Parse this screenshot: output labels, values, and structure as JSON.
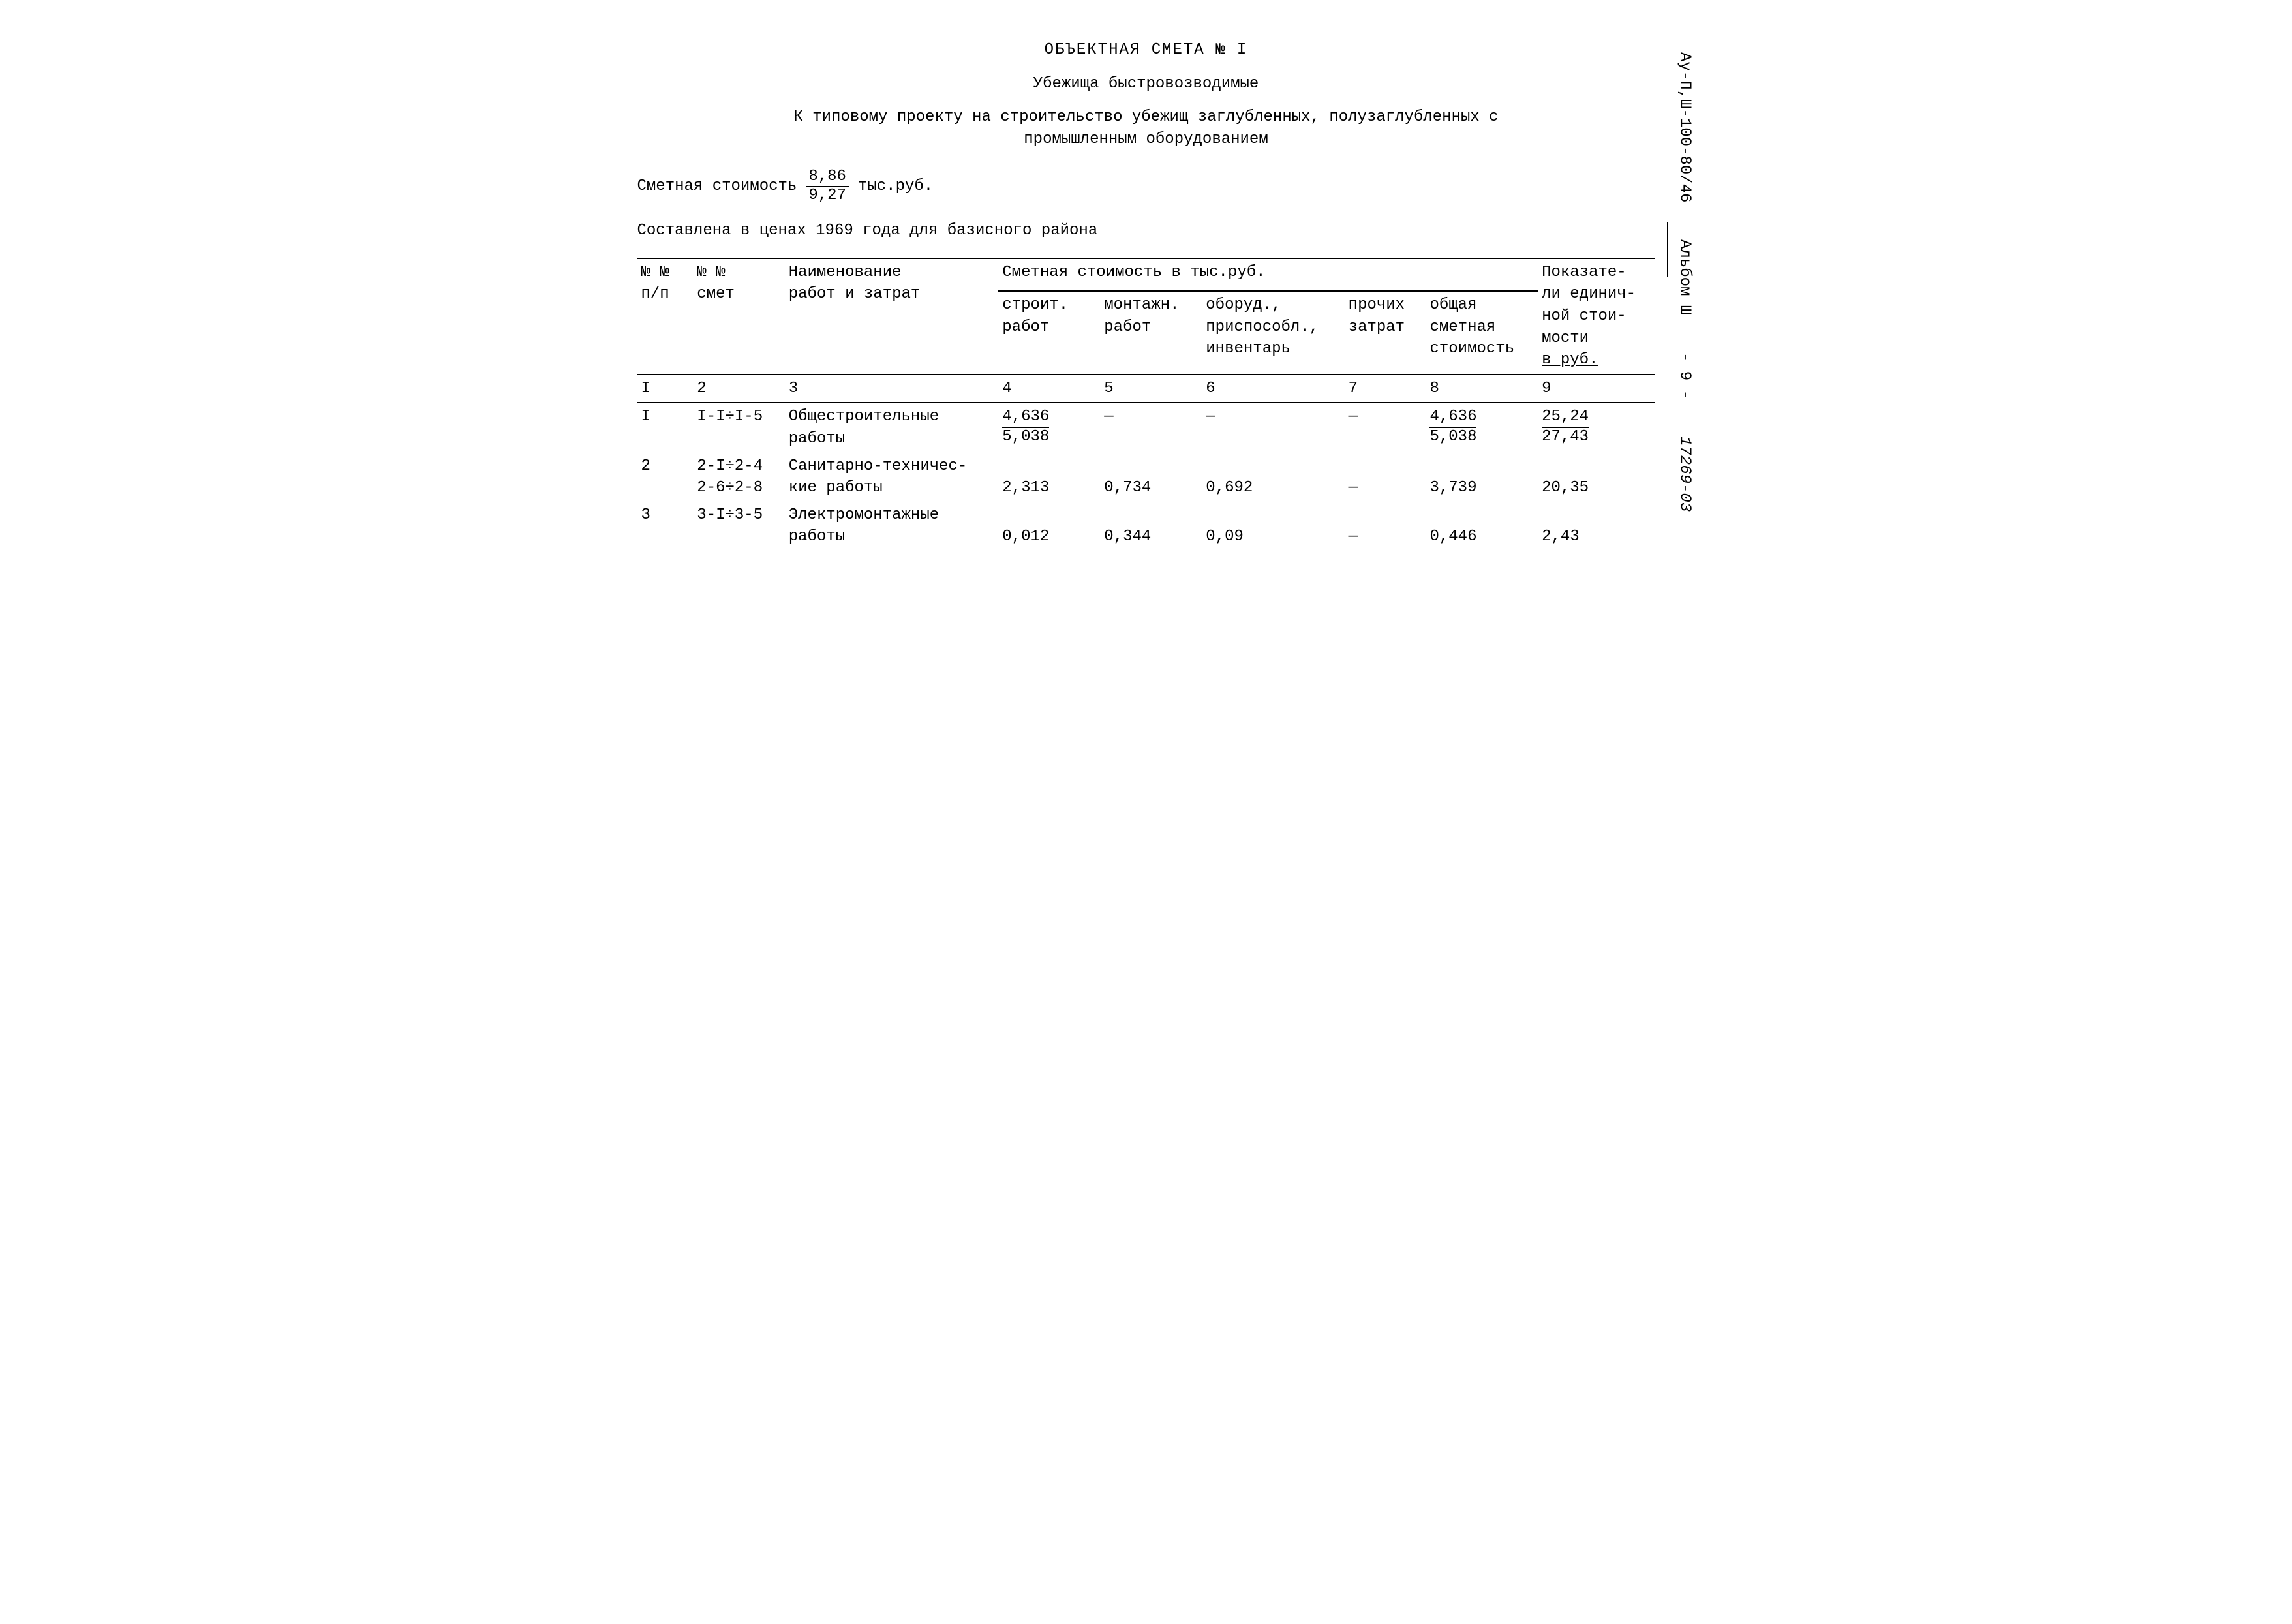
{
  "header": {
    "title1": "ОБЪЕКТНАЯ СМЕТА № I",
    "title2": "Убежища быстровозводимые",
    "title3_line1": "К типовому проекту на строительство убежищ заглубленных, полузаглубленных с",
    "title3_line2": "промышленным оборудованием",
    "cost_label": "Сметная стоимость",
    "cost_top": "8,86",
    "cost_bot": "9,27",
    "cost_unit": "тыс.руб.",
    "prices_line": "Составлена в ценах 1969 года для базисного района"
  },
  "table": {
    "hdr_col1_l1": "№ №",
    "hdr_col1_l2": "п/п",
    "hdr_col2_l1": "№ №",
    "hdr_col2_l2": "смет",
    "hdr_col3_l1": "Наименование",
    "hdr_col3_l2": "работ и затрат",
    "hdr_super": "Сметная стоимость в тыс.руб.",
    "hdr_c4_l1": "строит.",
    "hdr_c4_l2": "работ",
    "hdr_c5_l1": "монтажн.",
    "hdr_c5_l2": "работ",
    "hdr_c6_l1": "оборуд.,",
    "hdr_c6_l2": "приспособл.,",
    "hdr_c6_l3": "инвентарь",
    "hdr_c7_l1": "прочих",
    "hdr_c7_l2": "затрат",
    "hdr_c8_l1": "общая",
    "hdr_c8_l2": "сметная",
    "hdr_c8_l3": "стоимость",
    "hdr_c9_l1": "Показате-",
    "hdr_c9_l2": "ли единич-",
    "hdr_c9_l3": "ной стои-",
    "hdr_c9_l4": "мости",
    "hdr_c9_l5": "в руб.",
    "colnums": [
      "I",
      "2",
      "3",
      "4",
      "5",
      "6",
      "7",
      "8",
      "9"
    ],
    "rows": [
      {
        "n": "I",
        "smet_l1": "I-I÷I-5",
        "smet_l2": "",
        "name_l1": "Общестроительные",
        "name_l2": "работы",
        "c4_top": "4,636",
        "c4_bot": "5,038",
        "c5": "—",
        "c6": "—",
        "c7": "—",
        "c8_top": "4,636",
        "c8_bot": "5,038",
        "c9_top": "25,24",
        "c9_bot": "27,43"
      },
      {
        "n": "2",
        "smet_l1": "2-I÷2-4",
        "smet_l2": "2-6÷2-8",
        "name_l1": "Санитарно-техничес-",
        "name_l2": "кие  работы",
        "c4": "2,313",
        "c5": "0,734",
        "c6": "0,692",
        "c7": "—",
        "c8": "3,739",
        "c9": "20,35"
      },
      {
        "n": "3",
        "smet_l1": "3-I÷3-5",
        "smet_l2": "",
        "name_l1": "Электромонтажные",
        "name_l2": "работы",
        "c4": "0,012",
        "c5": "0,344",
        "c6": "0,09",
        "c7": "—",
        "c8": "0,446",
        "c9": "2,43"
      }
    ]
  },
  "side": {
    "top": "Ау-П,Ш-100-80/46",
    "mid": "Альбом Ш",
    "page": "- 9 -",
    "bottom": "17269-03"
  },
  "colors": {
    "text": "#000000",
    "background": "#ffffff",
    "rule": "#000000"
  }
}
